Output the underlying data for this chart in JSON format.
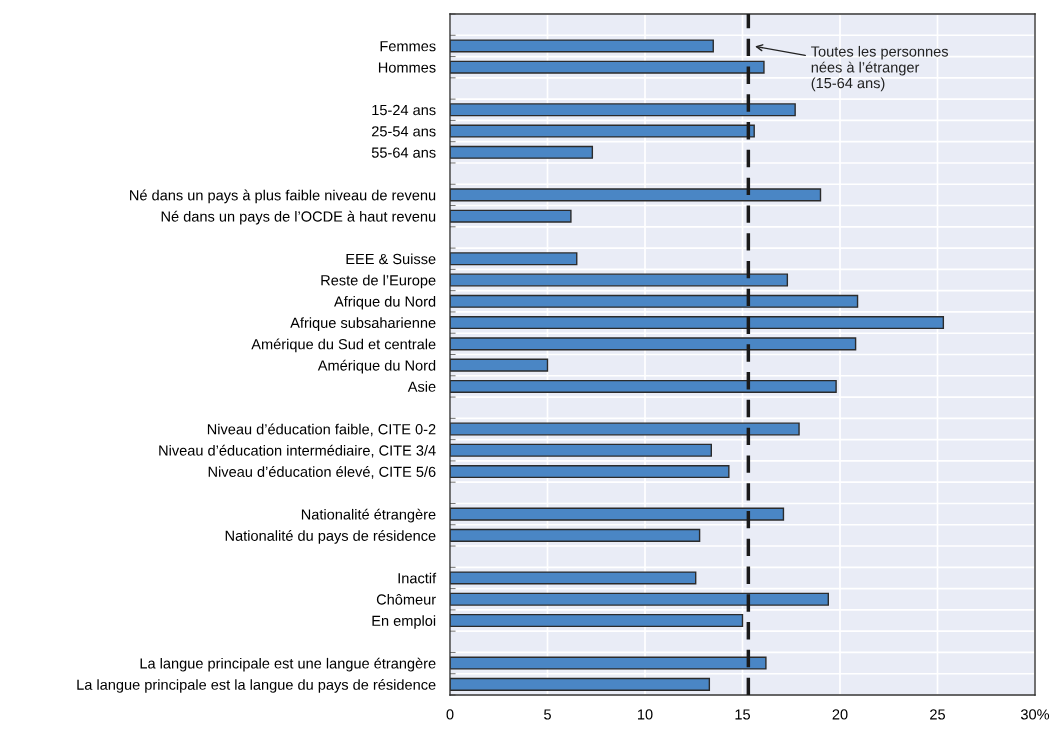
{
  "chart_data": {
    "type": "bar",
    "orientation": "horizontal",
    "categories": [
      "Femmes",
      "Hommes",
      null,
      "15-24 ans",
      "25-54 ans",
      "55-64 ans",
      null,
      "Né dans un pays à plus faible niveau de revenu",
      "Né dans un pays de l’OCDE à haut revenu",
      null,
      "EEE & Suisse",
      "Reste de l’Europe",
      "Afrique du Nord",
      "Afrique subsaharienne",
      "Amérique du Sud et centrale",
      "Amérique du Nord",
      "Asie",
      null,
      "Niveau d’éducation faible, CITE 0-2",
      "Niveau d’éducation intermédiaire, CITE 3/4",
      "Niveau d’éducation élevé, CITE 5/6",
      null,
      "Nationalité étrangère",
      "Nationalité du pays de résidence",
      null,
      "Inactif",
      "Chômeur",
      "En emploi",
      null,
      "La langue principale est une langue étrangère",
      "La langue principale est la langue du pays de résidence"
    ],
    "values": [
      13.5,
      16.1,
      null,
      17.7,
      15.6,
      7.3,
      null,
      19.0,
      6.2,
      null,
      6.5,
      17.3,
      20.9,
      25.3,
      20.8,
      5.0,
      19.8,
      null,
      17.9,
      13.4,
      14.3,
      null,
      17.1,
      12.8,
      null,
      12.6,
      19.4,
      15.0,
      null,
      16.2,
      13.3
    ],
    "color": "#4a86c5",
    "xlim": [
      0,
      30
    ],
    "xticks": [
      0,
      5,
      10,
      15,
      20,
      25,
      {
        "value": 30,
        "label": "30%"
      }
    ],
    "grid": true,
    "ref_lines": [
      {
        "axis": "x",
        "value": 15.3,
        "label": "Toutes les personnes\nnées à l’étranger\n(15-64 ans)",
        "color": "#1a1a1a",
        "line_style": "dashed"
      }
    ]
  }
}
